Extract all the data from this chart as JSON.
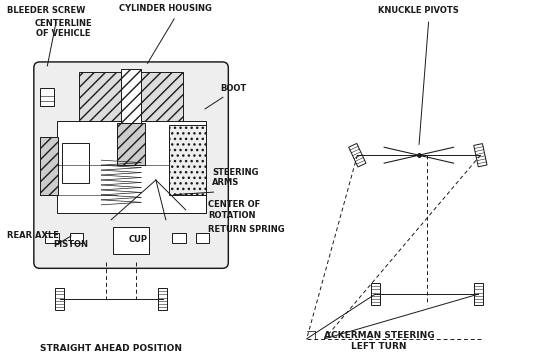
{
  "bg_color": "#ffffff",
  "line_color": "#1a1a1a",
  "label_fontsize": 6.0,
  "labels": {
    "bleeder_screw": "BLEEDER SCREW",
    "cylinder_housing": "CYLINDER HOUSING",
    "centerline": "CENTERLINE\nOF VEHICLE",
    "boot": "BOOT",
    "steering_arms": "STEERING\nARMS",
    "center_rotation": "CENTER OF\nROTATION",
    "return_spring": "RETURN SPRING",
    "rear_axle": "REAR AXLE",
    "piston": "PISTON",
    "cup": "CUP",
    "straight_ahead": "STRAIGHT AHEAD POSITION",
    "knuckle_pivots": "KNUCKLE PIVOTS",
    "ackerman": "ACKERMAN STEERING\nLEFT TURN"
  }
}
